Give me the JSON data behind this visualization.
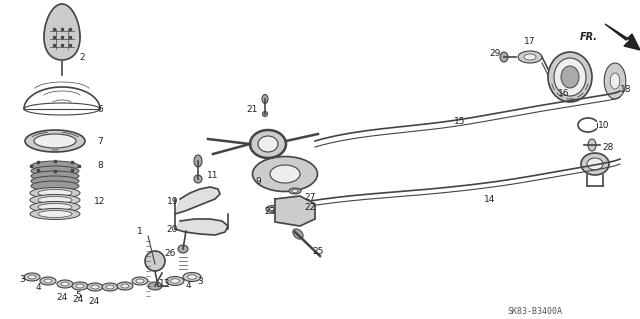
{
  "background_color": "#ffffff",
  "line_color": "#444444",
  "diagram_code": "SK83-B3400A",
  "figsize": [
    6.4,
    3.19
  ],
  "dpi": 100
}
